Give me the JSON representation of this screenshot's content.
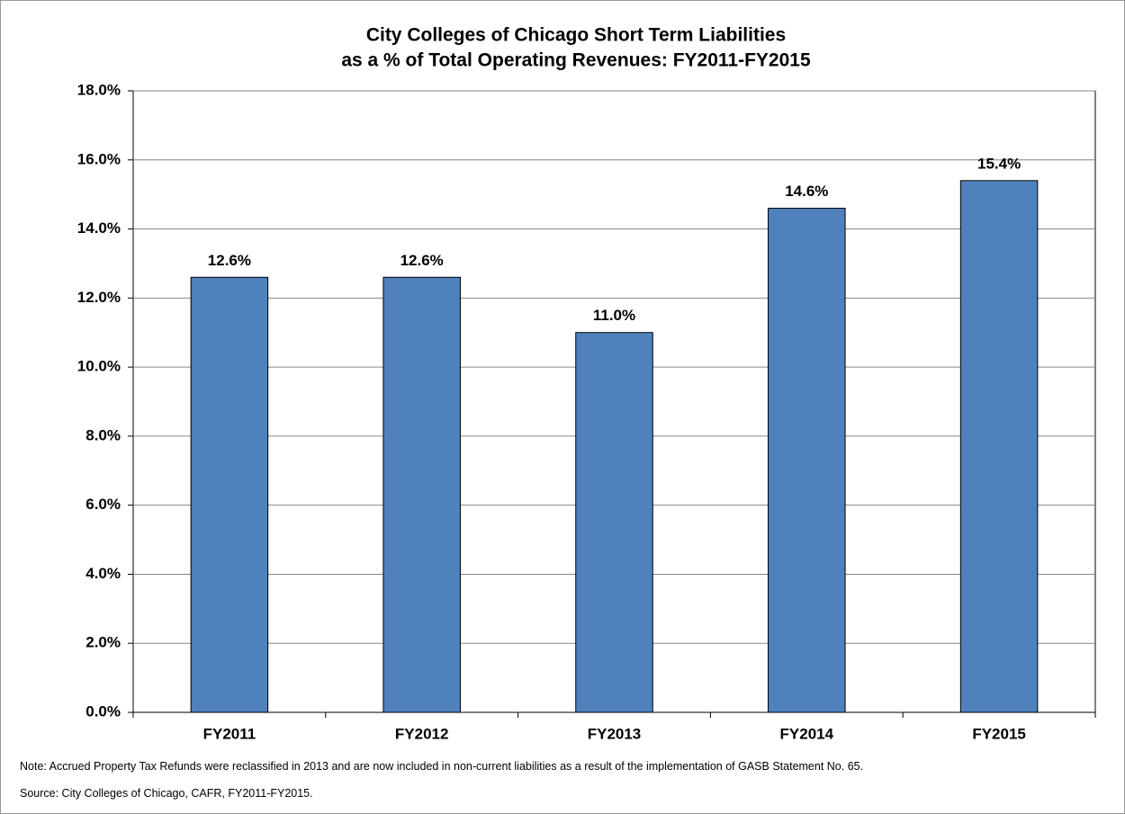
{
  "chart_data": {
    "type": "bar",
    "title": [
      "City Colleges of Chicago Short Term Liabilities",
      "as a % of Total Operating Revenues:  FY2011-FY2015"
    ],
    "categories": [
      "FY2011",
      "FY2012",
      "FY2013",
      "FY2014",
      "FY2015"
    ],
    "values": [
      12.6,
      12.6,
      11.0,
      14.6,
      15.4
    ],
    "value_labels": [
      "12.6%",
      "12.6%",
      "11.0%",
      "14.6%",
      "15.4%"
    ],
    "color": "#4f81bd",
    "ylim": [
      0,
      18
    ],
    "yticks": [
      {
        "value": 0,
        "label": "0.0%"
      },
      {
        "value": 2,
        "label": "2.0%"
      },
      {
        "value": 4,
        "label": "4.0%"
      },
      {
        "value": 6,
        "label": "6.0%"
      },
      {
        "value": 8,
        "label": "8.0%"
      },
      {
        "value": 10,
        "label": "10.0%"
      },
      {
        "value": 12,
        "label": "12.0%"
      },
      {
        "value": 14,
        "label": "14.0%"
      },
      {
        "value": 16,
        "label": "16.0%"
      },
      {
        "value": 18,
        "label": "18.0%"
      }
    ],
    "grid": true,
    "notes": [
      "Note:  Accrued Property Tax Refunds were reclassified in 2013 and are now included in non-current liabilities as a result of the implementation of GASB Statement No. 65.",
      "Source:  City Colleges of Chicago, CAFR, FY2011-FY2015."
    ]
  }
}
